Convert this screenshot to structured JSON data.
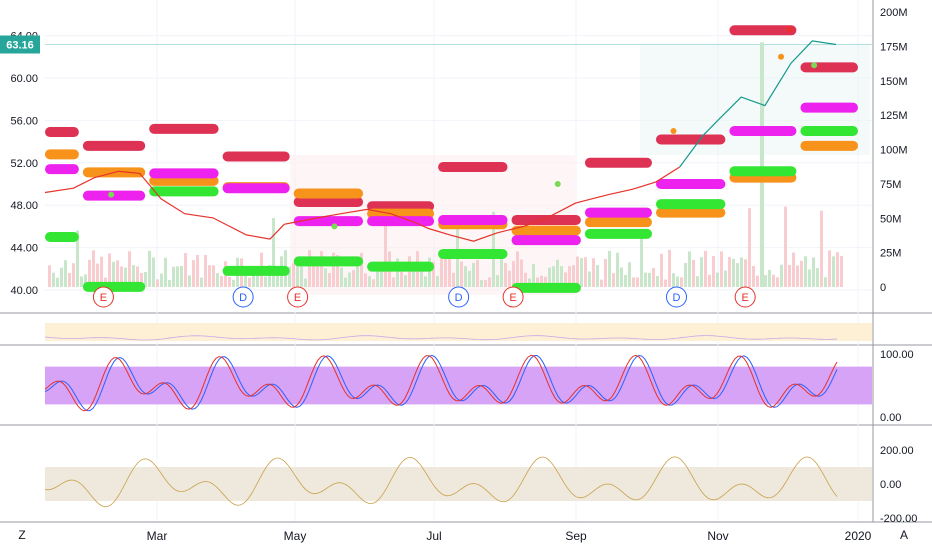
{
  "colors": {
    "price_line": "#e6322a",
    "price_line_recent": "#16998c",
    "price_label_bg": "#26a69a",
    "pivot_red": "#de3254",
    "pivot_orange": "#f7931a",
    "pivot_magenta": "#ee22ee",
    "pivot_green": "#33e633",
    "stoch_band": "#d6a3f7",
    "rsi_band": "#fdf0d5",
    "cci_band": "#efe8dd",
    "vol_up": "#c8e6c9",
    "vol_down": "#f7cdd0",
    "text_main": "#131722",
    "grid": "#f0f3fa"
  },
  "price_label": "63.16",
  "price_axis_ticks": [
    "40.00",
    "44.00",
    "48.00",
    "52.00",
    "56.00",
    "60.00",
    "64.00"
  ],
  "volume_axis_ticks": [
    "0",
    "25M",
    "50M",
    "75M",
    "100M",
    "125M",
    "150M",
    "175M",
    "200M"
  ],
  "stoch_axis_ticks": [
    "100.00",
    "0.00"
  ],
  "cci_axis_ticks": [
    "200.00",
    "0.00",
    "-200.00"
  ],
  "x_axis_labels": [
    "Mar",
    "May",
    "Jul",
    "Sep",
    "Nov",
    "2020"
  ],
  "corner_left": "Z",
  "corner_right": "A",
  "events": [
    {
      "label": "E",
      "kind": "earnings",
      "date": "2019-02-01"
    },
    {
      "label": "D",
      "kind": "dividend",
      "date": "2019-04-01"
    },
    {
      "label": "E",
      "kind": "earnings",
      "date": "2019-04-24"
    },
    {
      "label": "D",
      "kind": "dividend",
      "date": "2019-07-01"
    },
    {
      "label": "E",
      "kind": "earnings",
      "date": "2019-07-24"
    },
    {
      "label": "D",
      "kind": "dividend",
      "date": "2019-10-01"
    },
    {
      "label": "E",
      "kind": "earnings",
      "date": "2019-10-30"
    }
  ],
  "chart_data": {
    "type": "line",
    "title": "",
    "price": {
      "x": [
        "2019-01-20",
        "2019-02-01",
        "2019-02-10",
        "2019-02-20",
        "2019-03-01",
        "2019-03-10",
        "2019-03-20",
        "2019-04-01",
        "2019-04-15",
        "2019-04-25",
        "2019-05-01",
        "2019-05-15",
        "2019-05-25",
        "2019-06-05",
        "2019-06-15",
        "2019-06-25",
        "2019-07-01",
        "2019-07-10",
        "2019-07-20",
        "2019-07-30",
        "2019-08-10",
        "2019-08-20",
        "2019-09-01",
        "2019-09-15",
        "2019-09-25",
        "2019-10-05",
        "2019-10-15",
        "2019-10-25",
        "2019-11-01",
        "2019-11-10",
        "2019-11-20",
        "2019-12-01",
        "2019-12-10",
        "2019-12-20"
      ],
      "y": [
        49.2,
        49.6,
        50.6,
        51.2,
        51.0,
        48.6,
        47.2,
        46.8,
        45.2,
        44.8,
        46.2,
        46.8,
        47.2,
        47.6,
        47.2,
        46.4,
        45.8,
        45.2,
        44.6,
        45.4,
        46.0,
        46.8,
        48.2,
        49.0,
        49.5,
        50.2,
        51.6,
        54.6,
        56.2,
        58.2,
        57.4,
        61.4,
        63.5,
        63.16
      ],
      "recent_from": "2019-10-15"
    },
    "volume": {
      "ylim": [
        0,
        200
      ],
      "unit": "M"
    },
    "pivot_levels": [
      {
        "color": "red",
        "from": "2019-01-20",
        "to": "2019-02-05",
        "value": 54.9
      },
      {
        "color": "red",
        "from": "2019-02-05",
        "to": "2019-03-05",
        "value": 53.6
      },
      {
        "color": "red",
        "from": "2019-03-05",
        "to": "2019-04-05",
        "value": 55.2
      },
      {
        "color": "red",
        "from": "2019-04-05",
        "to": "2019-05-05",
        "value": 52.6
      },
      {
        "color": "red",
        "from": "2019-05-05",
        "to": "2019-06-05",
        "value": 48.3
      },
      {
        "color": "red",
        "from": "2019-06-05",
        "to": "2019-07-05",
        "value": 47.9
      },
      {
        "color": "red",
        "from": "2019-07-05",
        "to": "2019-08-05",
        "value": 51.6
      },
      {
        "color": "red",
        "from": "2019-08-05",
        "to": "2019-09-05",
        "value": 46.6
      },
      {
        "color": "red",
        "from": "2019-09-05",
        "to": "2019-10-05",
        "value": 52.0
      },
      {
        "color": "red",
        "from": "2019-10-05",
        "to": "2019-11-05",
        "value": 54.2
      },
      {
        "color": "red",
        "from": "2019-11-05",
        "to": "2019-12-05",
        "value": 64.5
      },
      {
        "color": "red",
        "from": "2019-12-05",
        "to": "2019-12-31",
        "value": 61.0
      },
      {
        "color": "orange",
        "from": "2019-01-20",
        "to": "2019-02-05",
        "value": 52.8
      },
      {
        "color": "orange",
        "from": "2019-02-05",
        "to": "2019-03-05",
        "value": 51.1
      },
      {
        "color": "orange",
        "from": "2019-03-05",
        "to": "2019-04-05",
        "value": 50.3
      },
      {
        "color": "orange",
        "from": "2019-04-05",
        "to": "2019-05-05",
        "value": 49.7
      },
      {
        "color": "orange",
        "from": "2019-05-05",
        "to": "2019-06-05",
        "value": 49.1
      },
      {
        "color": "orange",
        "from": "2019-06-05",
        "to": "2019-07-05",
        "value": 47.2
      },
      {
        "color": "orange",
        "from": "2019-07-05",
        "to": "2019-08-05",
        "value": 46.2
      },
      {
        "color": "orange",
        "from": "2019-08-05",
        "to": "2019-09-05",
        "value": 45.6
      },
      {
        "color": "orange",
        "from": "2019-09-05",
        "to": "2019-10-05",
        "value": 46.4
      },
      {
        "color": "orange",
        "from": "2019-10-05",
        "to": "2019-11-05",
        "value": 47.3
      },
      {
        "color": "orange",
        "from": "2019-11-05",
        "to": "2019-12-05",
        "value": 50.6
      },
      {
        "color": "orange",
        "from": "2019-12-05",
        "to": "2019-12-31",
        "value": 53.6
      },
      {
        "color": "magenta",
        "from": "2019-01-20",
        "to": "2019-02-05",
        "value": 51.4
      },
      {
        "color": "magenta",
        "from": "2019-02-05",
        "to": "2019-03-05",
        "value": 48.9
      },
      {
        "color": "magenta",
        "from": "2019-03-05",
        "to": "2019-04-05",
        "value": 51.0
      },
      {
        "color": "magenta",
        "from": "2019-04-05",
        "to": "2019-05-05",
        "value": 49.6
      },
      {
        "color": "magenta",
        "from": "2019-05-05",
        "to": "2019-06-05",
        "value": 46.5
      },
      {
        "color": "magenta",
        "from": "2019-06-05",
        "to": "2019-07-05",
        "value": 46.5
      },
      {
        "color": "magenta",
        "from": "2019-07-05",
        "to": "2019-08-05",
        "value": 46.6
      },
      {
        "color": "magenta",
        "from": "2019-08-05",
        "to": "2019-09-05",
        "value": 44.7
      },
      {
        "color": "magenta",
        "from": "2019-09-05",
        "to": "2019-10-05",
        "value": 47.3
      },
      {
        "color": "magenta",
        "from": "2019-10-05",
        "to": "2019-11-05",
        "value": 50.0
      },
      {
        "color": "magenta",
        "from": "2019-11-05",
        "to": "2019-12-05",
        "value": 55.0
      },
      {
        "color": "magenta",
        "from": "2019-12-05",
        "to": "2019-12-31",
        "value": 57.2
      },
      {
        "color": "green",
        "from": "2019-01-20",
        "to": "2019-02-05",
        "value": 45.0
      },
      {
        "color": "green",
        "from": "2019-02-05",
        "to": "2019-03-05",
        "value": 40.3
      },
      {
        "color": "green",
        "from": "2019-03-05",
        "to": "2019-04-05",
        "value": 49.3
      },
      {
        "color": "green",
        "from": "2019-04-05",
        "to": "2019-05-05",
        "value": 41.8
      },
      {
        "color": "green",
        "from": "2019-05-05",
        "to": "2019-06-05",
        "value": 42.7
      },
      {
        "color": "green",
        "from": "2019-06-05",
        "to": "2019-07-05",
        "value": 42.2
      },
      {
        "color": "green",
        "from": "2019-07-05",
        "to": "2019-08-05",
        "value": 43.4
      },
      {
        "color": "green",
        "from": "2019-08-05",
        "to": "2019-09-05",
        "value": 40.2
      },
      {
        "color": "green",
        "from": "2019-09-05",
        "to": "2019-10-05",
        "value": 45.3
      },
      {
        "color": "green",
        "from": "2019-10-05",
        "to": "2019-11-05",
        "value": 48.1
      },
      {
        "color": "green",
        "from": "2019-11-05",
        "to": "2019-12-05",
        "value": 51.2
      },
      {
        "color": "green",
        "from": "2019-12-05",
        "to": "2019-12-31",
        "value": 55.0
      }
    ],
    "oscillators": [
      {
        "name": "",
        "band": [
          20,
          80
        ],
        "ylim": [
          0,
          100
        ]
      },
      {
        "name": "",
        "band": [
          -100,
          100
        ],
        "ylim": [
          -200,
          200
        ]
      }
    ],
    "grid": true,
    "legend": "none"
  }
}
